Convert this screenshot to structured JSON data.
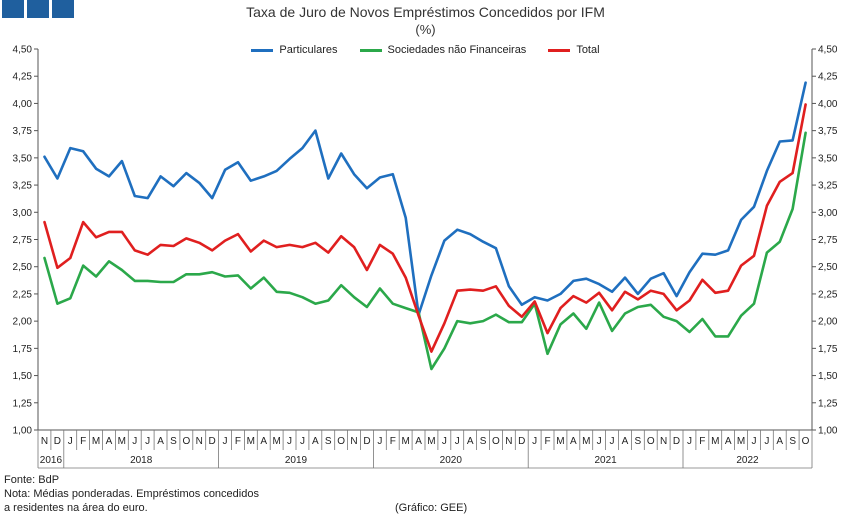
{
  "header": {
    "title": "Taxa de Juro de Novos Empréstimos Concedidos por IFM",
    "subtitle": "(%)"
  },
  "footer": {
    "source": "Fonte: BdP",
    "note_line1": "Nota: Médias ponderadas. Empréstimos concedidos",
    "note_line2": "a residentes na área do euro.",
    "credit": "(Gráfico: GEE)"
  },
  "logo": {
    "icon": "three-blue-squares-logo"
  },
  "chart_data": {
    "type": "line",
    "grid": false,
    "legend_position": "top-center",
    "ylim": [
      1.0,
      4.5
    ],
    "y_ticks": [
      "1,00",
      "1,25",
      "1,50",
      "1,75",
      "2,00",
      "2,25",
      "2,50",
      "2,75",
      "3,00",
      "3,25",
      "3,50",
      "3,75",
      "4,00",
      "4,25",
      "4,50"
    ],
    "x": [
      "N",
      "D",
      "J",
      "F",
      "M",
      "A",
      "M",
      "J",
      "J",
      "A",
      "S",
      "O",
      "N",
      "D",
      "J",
      "F",
      "M",
      "A",
      "M",
      "J",
      "J",
      "A",
      "S",
      "O",
      "N",
      "D",
      "J",
      "F",
      "M",
      "A",
      "M",
      "J",
      "J",
      "A",
      "S",
      "O",
      "N",
      "D",
      "J",
      "F",
      "M",
      "A",
      "M",
      "J",
      "J",
      "A",
      "S",
      "O",
      "N",
      "D",
      "J",
      "F",
      "M",
      "A",
      "M",
      "J",
      "J",
      "A",
      "S",
      "O"
    ],
    "years": [
      {
        "label": "2016",
        "start": 0,
        "end": 1
      },
      {
        "label": "2018",
        "start": 2,
        "end": 13
      },
      {
        "label": "2019",
        "start": 14,
        "end": 25
      },
      {
        "label": "2020",
        "start": 26,
        "end": 37
      },
      {
        "label": "2021",
        "start": 38,
        "end": 49
      },
      {
        "label": "2022",
        "start": 50,
        "end": 59
      }
    ],
    "series": [
      {
        "name": "Particulares",
        "color": "#1f6fbf",
        "values": [
          3.51,
          3.31,
          3.59,
          3.56,
          3.4,
          3.33,
          3.47,
          3.15,
          3.13,
          3.33,
          3.24,
          3.36,
          3.27,
          3.13,
          3.39,
          3.46,
          3.29,
          3.33,
          3.38,
          3.49,
          3.59,
          3.75,
          3.31,
          3.54,
          3.35,
          3.22,
          3.32,
          3.35,
          2.95,
          2.06,
          2.42,
          2.74,
          2.84,
          2.8,
          2.73,
          2.67,
          2.32,
          2.15,
          2.22,
          2.19,
          2.25,
          2.37,
          2.39,
          2.34,
          2.27,
          2.4,
          2.25,
          2.39,
          2.44,
          2.23,
          2.45,
          2.62,
          2.61,
          2.65,
          2.93,
          3.05,
          3.38,
          3.65,
          3.66,
          4.19
        ]
      },
      {
        "name": "Sociedades não Financeiras",
        "color": "#2ba84a",
        "values": [
          2.58,
          2.16,
          2.21,
          2.51,
          2.41,
          2.55,
          2.47,
          2.37,
          2.37,
          2.36,
          2.36,
          2.43,
          2.43,
          2.45,
          2.41,
          2.42,
          2.3,
          2.4,
          2.27,
          2.26,
          2.22,
          2.16,
          2.19,
          2.33,
          2.22,
          2.13,
          2.3,
          2.16,
          2.12,
          2.08,
          1.56,
          1.75,
          2.0,
          1.98,
          2.0,
          2.06,
          1.99,
          1.99,
          2.16,
          1.7,
          1.97,
          2.07,
          1.93,
          2.17,
          1.91,
          2.07,
          2.13,
          2.15,
          2.04,
          2.0,
          1.9,
          2.02,
          1.86,
          1.86,
          2.05,
          2.16,
          2.63,
          2.73,
          3.03,
          3.73
        ]
      },
      {
        "name": "Total",
        "color": "#e01f1f",
        "values": [
          2.91,
          2.49,
          2.58,
          2.91,
          2.77,
          2.82,
          2.82,
          2.65,
          2.61,
          2.7,
          2.69,
          2.76,
          2.72,
          2.65,
          2.74,
          2.8,
          2.64,
          2.74,
          2.68,
          2.7,
          2.68,
          2.72,
          2.63,
          2.78,
          2.68,
          2.47,
          2.7,
          2.62,
          2.4,
          2.05,
          1.72,
          1.98,
          2.28,
          2.29,
          2.28,
          2.32,
          2.14,
          2.04,
          2.18,
          1.89,
          2.12,
          2.23,
          2.17,
          2.26,
          2.1,
          2.27,
          2.2,
          2.28,
          2.25,
          2.1,
          2.19,
          2.38,
          2.26,
          2.28,
          2.51,
          2.6,
          3.06,
          3.28,
          3.36,
          3.99
        ]
      }
    ]
  }
}
